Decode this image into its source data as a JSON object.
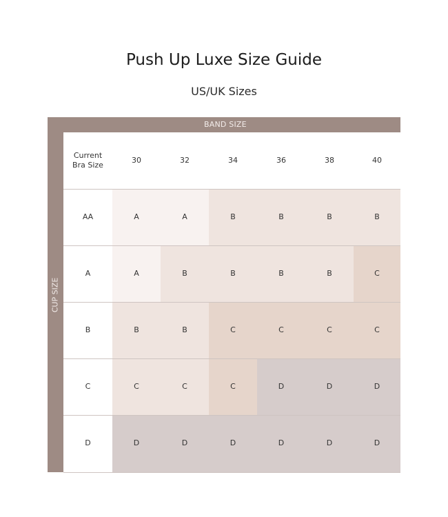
{
  "title": "Push Up Luxe Size Guide",
  "subtitle": "US/UK Sizes",
  "band_label": "BAND SIZE",
  "cup_label": "CUP SIZE",
  "corner_label": "Current Bra Size",
  "band_sizes": [
    "30",
    "32",
    "34",
    "36",
    "38",
    "40"
  ],
  "tone_colors": [
    "#f8f2f0",
    "#efe4df",
    "#e6d5cb",
    "#d6cccb"
  ],
  "rows": [
    {
      "cup": "AA",
      "sizes": [
        "A",
        "A",
        "B",
        "B",
        "B",
        "B"
      ],
      "tones": [
        0,
        0,
        1,
        1,
        1,
        1
      ]
    },
    {
      "cup": "A",
      "sizes": [
        "A",
        "B",
        "B",
        "B",
        "B",
        "C"
      ],
      "tones": [
        0,
        1,
        1,
        1,
        1,
        2
      ]
    },
    {
      "cup": "B",
      "sizes": [
        "B",
        "B",
        "C",
        "C",
        "C",
        "C"
      ],
      "tones": [
        1,
        1,
        2,
        2,
        2,
        2
      ]
    },
    {
      "cup": "C",
      "sizes": [
        "C",
        "C",
        "C",
        "D",
        "D",
        "D"
      ],
      "tones": [
        1,
        1,
        2,
        3,
        3,
        3
      ]
    },
    {
      "cup": "D",
      "sizes": [
        "D",
        "D",
        "D",
        "D",
        "D",
        "D"
      ],
      "tones": [
        3,
        3,
        3,
        3,
        3,
        3
      ]
    }
  ]
}
